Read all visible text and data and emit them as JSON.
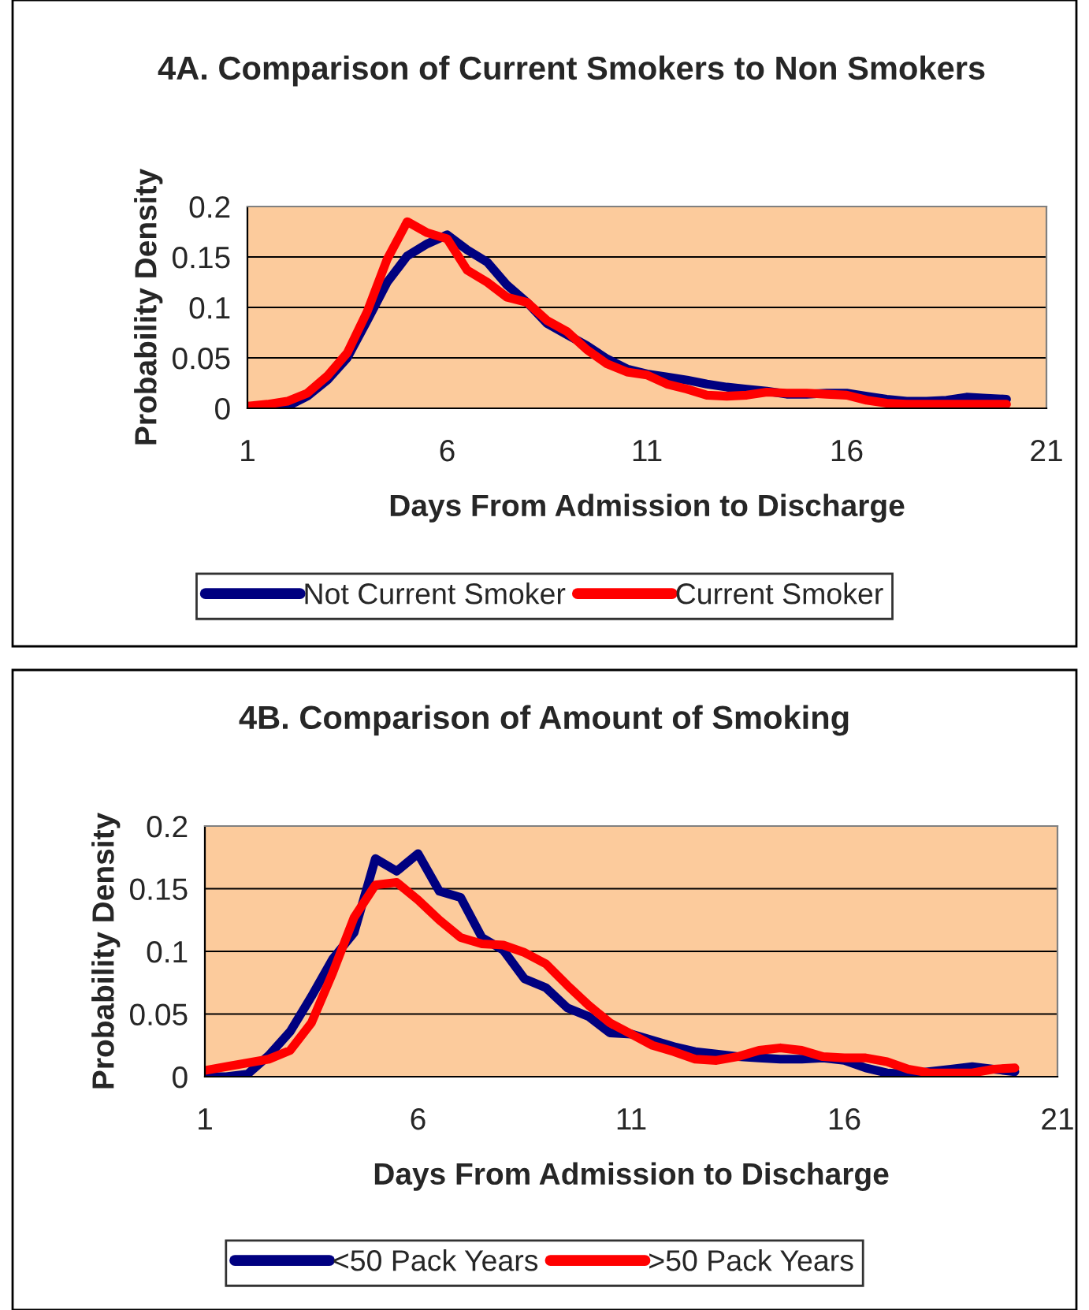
{
  "chart_data": [
    {
      "type": "line",
      "title": "4A. Comparison of Current Smokers to Non Smokers",
      "xlabel": "Days From Admission to Discharge",
      "ylabel": "Probability Density",
      "x": [
        1,
        1.5,
        2,
        2.5,
        3,
        3.5,
        4,
        4.5,
        5,
        5.5,
        6,
        6.5,
        7,
        7.5,
        8,
        8.5,
        9,
        9.5,
        10,
        10.5,
        11,
        11.5,
        12,
        12.5,
        13,
        13.5,
        14,
        14.5,
        15,
        15.5,
        16,
        16.5,
        17,
        17.5,
        18,
        18.5,
        19,
        19.5,
        20
      ],
      "series": [
        {
          "name": "Not Current Smoker",
          "color": "#000080",
          "values": [
            0.0,
            0.0,
            0.002,
            0.012,
            0.028,
            0.05,
            0.087,
            0.125,
            0.151,
            0.163,
            0.172,
            0.157,
            0.145,
            0.122,
            0.105,
            0.084,
            0.073,
            0.062,
            0.049,
            0.039,
            0.034,
            0.031,
            0.028,
            0.024,
            0.021,
            0.019,
            0.017,
            0.014,
            0.014,
            0.015,
            0.015,
            0.012,
            0.009,
            0.007,
            0.007,
            0.008,
            0.011,
            0.01,
            0.009
          ]
        },
        {
          "name": "Current Smoker",
          "color": "#ff0000",
          "values": [
            0.002,
            0.004,
            0.007,
            0.015,
            0.032,
            0.055,
            0.096,
            0.148,
            0.185,
            0.174,
            0.168,
            0.137,
            0.125,
            0.11,
            0.105,
            0.087,
            0.076,
            0.058,
            0.044,
            0.036,
            0.033,
            0.024,
            0.019,
            0.013,
            0.012,
            0.013,
            0.016,
            0.015,
            0.015,
            0.014,
            0.013,
            0.008,
            0.005,
            0.004,
            0.004,
            0.004,
            0.004,
            0.004,
            0.004
          ]
        }
      ],
      "xlim": [
        1,
        21
      ],
      "xticks": [
        1,
        6,
        11,
        16,
        21
      ],
      "ylim": [
        0,
        0.2
      ],
      "yticks": [
        0,
        0.05,
        0.1,
        0.15,
        0.2
      ],
      "grid": "y",
      "legend": "bottom",
      "marker": "none",
      "line_style": "solid"
    },
    {
      "type": "line",
      "title": "4B. Comparison of Amount of Smoking",
      "xlabel": "Days From Admission to Discharge",
      "ylabel": "Probability Density",
      "x": [
        1,
        1.5,
        2,
        2.5,
        3,
        3.5,
        4,
        4.5,
        5,
        5.5,
        6,
        6.5,
        7,
        7.5,
        8,
        8.5,
        9,
        9.5,
        10,
        10.5,
        11,
        11.5,
        12,
        12.5,
        13,
        13.5,
        14,
        14.5,
        15,
        15.5,
        16,
        16.5,
        17,
        17.5,
        18,
        18.5,
        19,
        19.5,
        20
      ],
      "series": [
        {
          "name": "<50 Pack Years",
          "color": "#000080",
          "values": [
            0.0,
            0.0,
            0.002,
            0.017,
            0.036,
            0.064,
            0.094,
            0.115,
            0.174,
            0.164,
            0.178,
            0.148,
            0.143,
            0.111,
            0.101,
            0.078,
            0.071,
            0.055,
            0.048,
            0.035,
            0.034,
            0.029,
            0.024,
            0.02,
            0.018,
            0.016,
            0.015,
            0.014,
            0.014,
            0.015,
            0.013,
            0.007,
            0.003,
            0.002,
            0.004,
            0.006,
            0.008,
            0.006,
            0.004
          ]
        },
        {
          "name": ">50 Pack Years",
          "color": "#ff0000",
          "values": [
            0.005,
            0.008,
            0.011,
            0.014,
            0.021,
            0.043,
            0.083,
            0.127,
            0.153,
            0.155,
            0.141,
            0.125,
            0.111,
            0.106,
            0.105,
            0.099,
            0.09,
            0.073,
            0.057,
            0.043,
            0.034,
            0.025,
            0.02,
            0.014,
            0.013,
            0.016,
            0.021,
            0.023,
            0.021,
            0.016,
            0.015,
            0.015,
            0.012,
            0.006,
            0.003,
            0.003,
            0.003,
            0.006,
            0.007
          ]
        }
      ],
      "xlim": [
        1,
        21
      ],
      "xticks": [
        1,
        6,
        11,
        16,
        21
      ],
      "ylim": [
        0,
        0.2
      ],
      "yticks": [
        0,
        0.05,
        0.1,
        0.15,
        0.2
      ],
      "grid": "y",
      "legend": "bottom",
      "marker": "none",
      "line_style": "solid"
    }
  ]
}
